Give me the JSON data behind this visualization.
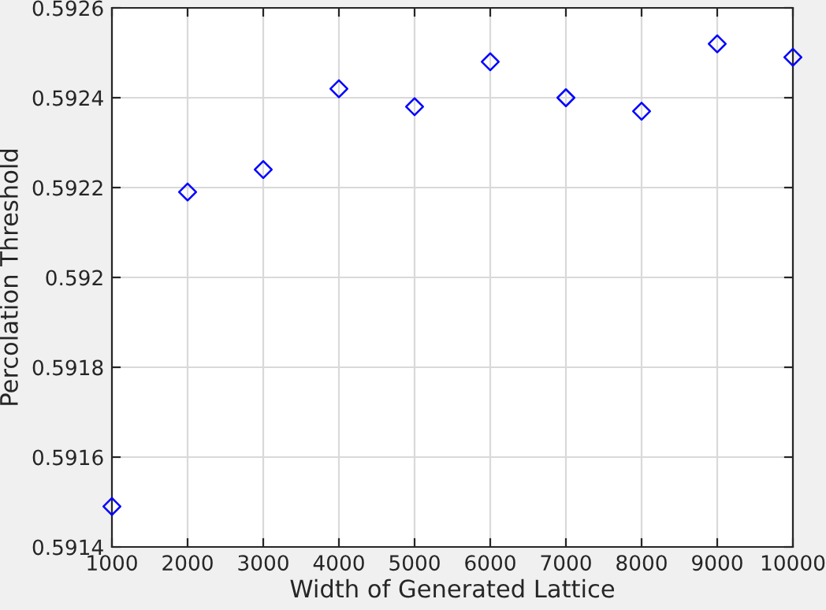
{
  "chart_data": {
    "type": "scatter",
    "xlabel": "Width of Generated Lattice",
    "ylabel": "Percolation Threshold",
    "x": [
      1000,
      2000,
      3000,
      4000,
      5000,
      6000,
      7000,
      8000,
      9000,
      10000
    ],
    "series": [
      {
        "color": "#0000ff",
        "values": [
          0.59149,
          0.59219,
          0.59224,
          0.59242,
          0.59238,
          0.59248,
          0.5924,
          0.59237,
          0.59252,
          0.59249
        ]
      }
    ],
    "marker": "diamond",
    "xlim": [
      1000,
      10000
    ],
    "xticks": [
      1000,
      2000,
      3000,
      4000,
      5000,
      6000,
      7000,
      8000,
      9000,
      10000
    ],
    "ylim": [
      0.5914,
      0.5926
    ],
    "yticks": [
      0.5914,
      0.5916,
      0.5918,
      0.592,
      0.5922,
      0.5924,
      0.5926
    ],
    "grid": true
  }
}
